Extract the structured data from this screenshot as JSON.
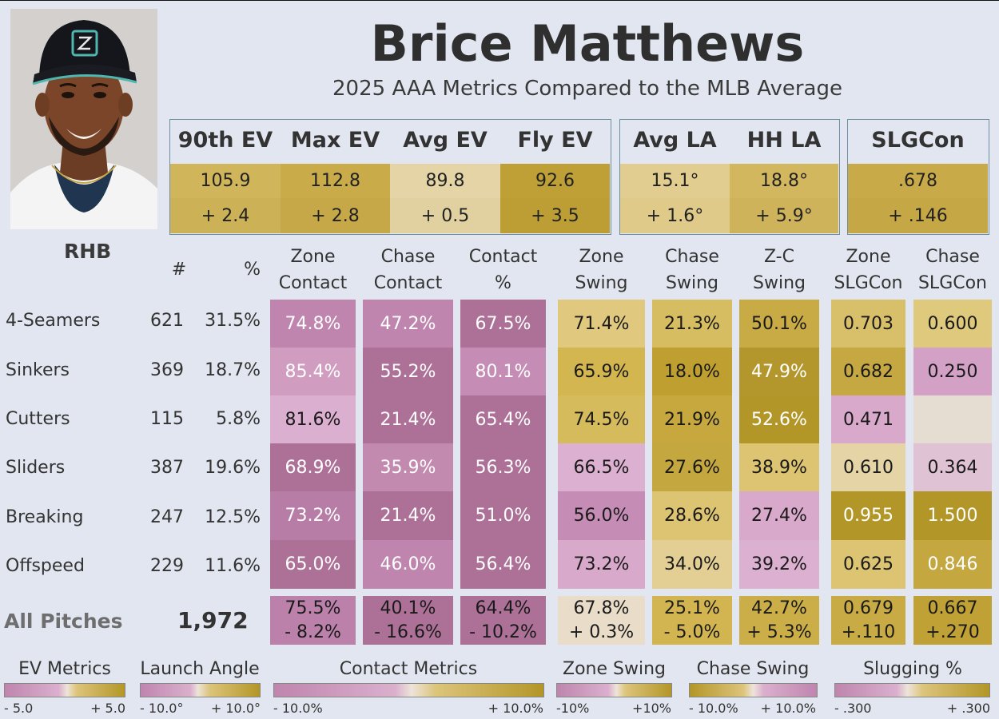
{
  "player": {
    "name": "Brice Matthews",
    "subtitle": "2025 AAA Metrics Compared to the MLB Average",
    "handedness": "RHB",
    "photo_alt": "player headshot"
  },
  "ev_metrics": [
    {
      "label": "90th EV",
      "value": "105.9",
      "diff": "+ 2.4"
    },
    {
      "label": "Max EV",
      "value": "112.8",
      "diff": "+ 2.8"
    },
    {
      "label": "Avg EV",
      "value": "89.8",
      "diff": "+ 0.5"
    },
    {
      "label": "Fly EV",
      "value": "92.6",
      "diff": "+ 3.5"
    }
  ],
  "la_metrics": [
    {
      "label": "Avg LA",
      "value": "15.1°",
      "diff": "+ 1.6°"
    },
    {
      "label": "HH LA",
      "value": "18.8°",
      "diff": "+ 5.9°"
    }
  ],
  "slg_metric": {
    "label": "SLGCon",
    "value": ".678",
    "diff": "+ .146"
  },
  "table": {
    "count_header": "#",
    "pct_header": "%",
    "columns": [
      {
        "line1": "Zone",
        "line2": "Contact"
      },
      {
        "line1": "Chase",
        "line2": "Contact"
      },
      {
        "line1": "Contact",
        "line2": "%"
      },
      {
        "line1": "Zone",
        "line2": "Swing"
      },
      {
        "line1": "Chase",
        "line2": "Swing"
      },
      {
        "line1": "Z-C",
        "line2": "Swing"
      },
      {
        "line1": "Zone",
        "line2": "SLGCon"
      },
      {
        "line1": "Chase",
        "line2": "SLGCon"
      }
    ],
    "rows": [
      {
        "pitch": "4-Seamers",
        "count": "621",
        "pct": "31.5%",
        "values": [
          "74.8%",
          "47.2%",
          "67.5%",
          "71.4%",
          "21.3%",
          "50.1%",
          "0.703",
          "0.600"
        ]
      },
      {
        "pitch": "Sinkers",
        "count": "369",
        "pct": "18.7%",
        "values": [
          "85.4%",
          "55.2%",
          "80.1%",
          "65.9%",
          "18.0%",
          "47.9%",
          "0.682",
          "0.250"
        ]
      },
      {
        "pitch": "Cutters",
        "count": "115",
        "pct": "5.8%",
        "values": [
          "81.6%",
          "21.4%",
          "65.4%",
          "74.5%",
          "21.9%",
          "52.6%",
          "0.471",
          ""
        ]
      },
      {
        "pitch": "Sliders",
        "count": "387",
        "pct": "19.6%",
        "values": [
          "68.9%",
          "35.9%",
          "56.3%",
          "66.5%",
          "27.6%",
          "38.9%",
          "0.610",
          "0.364"
        ]
      },
      {
        "pitch": "Breaking",
        "count": "247",
        "pct": "12.5%",
        "values": [
          "73.2%",
          "21.4%",
          "51.0%",
          "56.0%",
          "28.6%",
          "27.4%",
          "0.955",
          "1.500"
        ]
      },
      {
        "pitch": "Offspeed",
        "count": "229",
        "pct": "11.6%",
        "values": [
          "65.0%",
          "46.0%",
          "56.4%",
          "73.2%",
          "34.0%",
          "39.2%",
          "0.625",
          "0.846"
        ]
      }
    ],
    "all_pitches": {
      "label": "All Pitches",
      "count": "1,972",
      "values": [
        {
          "value": "75.5%",
          "diff": "- 8.2%"
        },
        {
          "value": "40.1%",
          "diff": "- 16.6%"
        },
        {
          "value": "64.4%",
          "diff": "- 10.2%"
        },
        {
          "value": "67.8%",
          "diff": "+ 0.3%"
        },
        {
          "value": "25.1%",
          "diff": "- 5.0%"
        },
        {
          "value": "42.7%",
          "diff": "+ 5.3%"
        },
        {
          "value": "0.679",
          "diff": "+.110"
        },
        {
          "value": "0.667",
          "diff": "+.270"
        }
      ]
    }
  },
  "legends": [
    {
      "title": "EV Metrics",
      "min": "- 5.0",
      "max": "+ 5.0"
    },
    {
      "title": "Launch Angle",
      "min": "- 10.0°",
      "max": "+ 10.0°"
    },
    {
      "title": "Contact Metrics",
      "min": "- 10.0%",
      "max": "+ 10.0%"
    },
    {
      "title": "Zone Swing",
      "min": "-10%",
      "max": "+10%"
    },
    {
      "title": "Chase Swing",
      "min": "- 10.0%",
      "max": "+ 10.0%"
    },
    {
      "title": "Slugging %",
      "min": "- .300",
      "max": "+ .300"
    }
  ],
  "colors": {
    "background": "#e2e6f0",
    "purple_dark": "#a96f9a",
    "purple_mid": "#bf85ae",
    "purple_light": "#d8a9cb",
    "neutral": "#e6ddd2",
    "gold_light": "#e3cf94",
    "gold_mid": "#d1b55b",
    "gold_dark": "#b89a2d"
  }
}
